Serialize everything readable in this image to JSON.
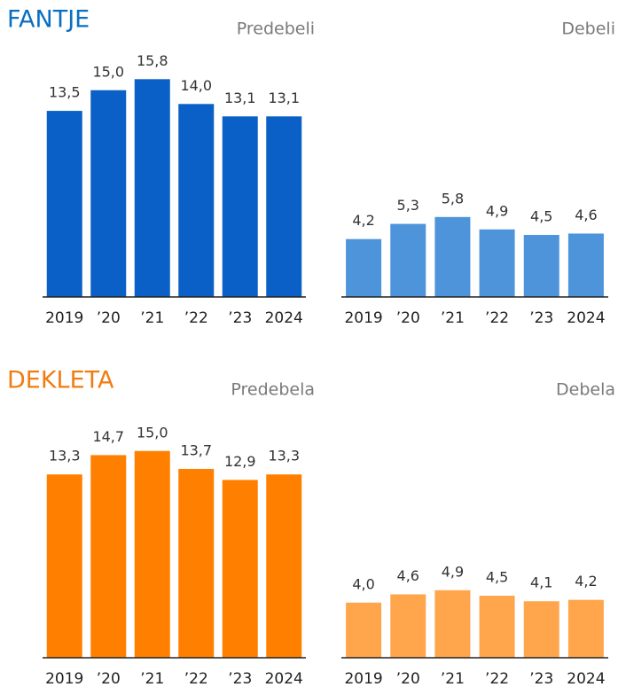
{
  "headings": [
    {
      "text": "FANTJE",
      "color": "#0a6fc2"
    },
    {
      "text": "DEKLETA",
      "color": "#f07d12"
    }
  ],
  "chart_data": [
    {
      "type": "bar",
      "title": "Predebeli",
      "categories": [
        "2019",
        "’20",
        "’21",
        "’22",
        "’23",
        "2024"
      ],
      "values": [
        13.5,
        15.0,
        15.8,
        14.0,
        13.1,
        13.1
      ],
      "value_labels": [
        "13,5",
        "15,0",
        "15,8",
        "14,0",
        "13,1",
        "13,1"
      ],
      "color": "#0a60c6",
      "ylim": [
        0,
        20
      ]
    },
    {
      "type": "bar",
      "title": "Debeli",
      "categories": [
        "2019",
        "’20",
        "’21",
        "’22",
        "’23",
        "2024"
      ],
      "values": [
        4.2,
        5.3,
        5.8,
        4.9,
        4.5,
        4.6
      ],
      "value_labels": [
        "4,2",
        "5,3",
        "5,8",
        "4,9",
        "4,5",
        "4,6"
      ],
      "color": "#4d94db",
      "ylim": [
        0,
        20
      ]
    },
    {
      "type": "bar",
      "title": "Predebela",
      "categories": [
        "2019",
        "’20",
        "’21",
        "’22",
        "’23",
        "2024"
      ],
      "values": [
        13.3,
        14.7,
        15.0,
        13.7,
        12.9,
        13.3
      ],
      "value_labels": [
        "13,3",
        "14,7",
        "15,0",
        "13,7",
        "12,9",
        "13,3"
      ],
      "color": "#ff8000",
      "ylim": [
        0,
        20
      ]
    },
    {
      "type": "bar",
      "title": "Debela",
      "categories": [
        "2019",
        "’20",
        "’21",
        "’22",
        "’23",
        "2024"
      ],
      "values": [
        4.0,
        4.6,
        4.9,
        4.5,
        4.1,
        4.2
      ],
      "value_labels": [
        "4,0",
        "4,6",
        "4,9",
        "4,5",
        "4,1",
        "4,2"
      ],
      "color": "#ffa64d",
      "ylim": [
        0,
        20
      ]
    }
  ]
}
